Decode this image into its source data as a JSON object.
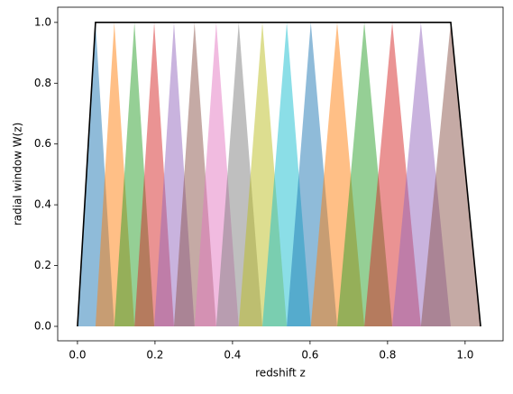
{
  "chart_data": {
    "type": "area",
    "x_label": "redshift z",
    "y_label": "radial window W(z)",
    "xlim": [
      -0.051,
      1.098
    ],
    "ylim": [
      -0.0475,
      1.05
    ],
    "xticks": [
      {
        "value": 0,
        "label": "0.0"
      },
      {
        "value": 0.2,
        "label": "0.2"
      },
      {
        "value": 0.4,
        "label": "0.4"
      },
      {
        "value": 0.6,
        "label": "0.6"
      },
      {
        "value": 0.8,
        "label": "0.8"
      },
      {
        "value": 1,
        "label": "1.0"
      }
    ],
    "yticks": [
      {
        "value": 0,
        "label": "0.0"
      },
      {
        "value": 0.2,
        "label": "0.2"
      },
      {
        "value": 0.4,
        "label": "0.4"
      },
      {
        "value": 0.6,
        "label": "0.6"
      },
      {
        "value": 0.8,
        "label": "0.8"
      },
      {
        "value": 1,
        "label": "1.0"
      }
    ],
    "alpha": 0.5,
    "series": [
      {
        "color": "#1f77b4",
        "fill": true,
        "x": [
          0,
          0.0465,
          0.095
        ],
        "values": [
          0,
          1,
          0
        ]
      },
      {
        "color": "#ff7f0e",
        "fill": true,
        "x": [
          0.0465,
          0.095,
          0.147
        ],
        "values": [
          0,
          1,
          0
        ]
      },
      {
        "color": "#2ca02c",
        "fill": true,
        "x": [
          0.095,
          0.147,
          0.198
        ],
        "values": [
          0,
          1,
          0
        ]
      },
      {
        "color": "#d62728",
        "fill": true,
        "x": [
          0.147,
          0.198,
          0.249
        ],
        "values": [
          0,
          1,
          0
        ]
      },
      {
        "color": "#9467bd",
        "fill": true,
        "x": [
          0.198,
          0.249,
          0.302
        ],
        "values": [
          0,
          1,
          0
        ]
      },
      {
        "color": "#8c564b",
        "fill": true,
        "x": [
          0.249,
          0.302,
          0.358
        ],
        "values": [
          0,
          1,
          0
        ]
      },
      {
        "color": "#e377c2",
        "fill": true,
        "x": [
          0.302,
          0.358,
          0.416
        ],
        "values": [
          0,
          1,
          0
        ]
      },
      {
        "color": "#7f7f7f",
        "fill": true,
        "x": [
          0.358,
          0.416,
          0.477
        ],
        "values": [
          0,
          1,
          0
        ]
      },
      {
        "color": "#bcbd22",
        "fill": true,
        "x": [
          0.416,
          0.477,
          0.54
        ],
        "values": [
          0,
          1,
          0
        ]
      },
      {
        "color": "#17becf",
        "fill": true,
        "x": [
          0.477,
          0.54,
          0.602
        ],
        "values": [
          0,
          1,
          0
        ]
      },
      {
        "color": "#1f77b4",
        "fill": true,
        "x": [
          0.54,
          0.602,
          0.67
        ],
        "values": [
          0,
          1,
          0
        ]
      },
      {
        "color": "#ff7f0e",
        "fill": true,
        "x": [
          0.602,
          0.67,
          0.74
        ],
        "values": [
          0,
          1,
          0
        ]
      },
      {
        "color": "#2ca02c",
        "fill": true,
        "x": [
          0.67,
          0.74,
          0.812
        ],
        "values": [
          0,
          1,
          0
        ]
      },
      {
        "color": "#d62728",
        "fill": true,
        "x": [
          0.74,
          0.812,
          0.886
        ],
        "values": [
          0,
          1,
          0
        ]
      },
      {
        "color": "#9467bd",
        "fill": true,
        "x": [
          0.812,
          0.886,
          0.963
        ],
        "values": [
          0,
          1,
          0
        ]
      },
      {
        "color": "#8c564b",
        "fill": true,
        "x": [
          0.886,
          0.963,
          1.04
        ],
        "values": [
          0,
          1,
          0
        ]
      },
      {
        "color": "#000000",
        "fill": false,
        "x": [
          0,
          0.0465,
          0.963,
          1.04
        ],
        "values": [
          0,
          1,
          1,
          0
        ]
      }
    ]
  }
}
